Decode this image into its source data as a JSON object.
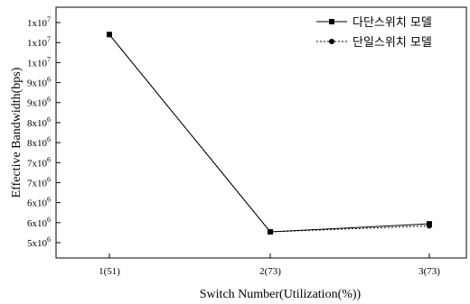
{
  "chart_data": {
    "type": "line",
    "xlabel": "Switch Number(Utilization(%))",
    "ylabel": "Effective Bandwidth(bps)",
    "categories": [
      "1(51)",
      "2(73)",
      "3(73)"
    ],
    "ylim": [
      5000000,
      10500000
    ],
    "yticks": [
      {
        "value": 5000000,
        "label": "5x10",
        "exp": "6"
      },
      {
        "value": 5500000,
        "label": "6x10",
        "exp": "6"
      },
      {
        "value": 6000000,
        "label": "6x10",
        "exp": "6"
      },
      {
        "value": 6500000,
        "label": "7x10",
        "exp": "6"
      },
      {
        "value": 7000000,
        "label": "7x10",
        "exp": "6"
      },
      {
        "value": 7500000,
        "label": "8x10",
        "exp": "6"
      },
      {
        "value": 8000000,
        "label": "8x10",
        "exp": "6"
      },
      {
        "value": 8500000,
        "label": "9x10",
        "exp": "6"
      },
      {
        "value": 9000000,
        "label": "9x10",
        "exp": "6"
      },
      {
        "value": 9500000,
        "label": "1x10",
        "exp": "7"
      },
      {
        "value": 10000000,
        "label": "1x10",
        "exp": "7"
      },
      {
        "value": 10500000,
        "label": "1x10",
        "exp": "7"
      }
    ],
    "series": [
      {
        "name": "다단스위치 모델",
        "values": [
          10200000,
          5270000,
          5470000
        ],
        "dash": "solid",
        "marker": "square",
        "color": "#000000"
      },
      {
        "name": "단일스위치 모델",
        "values": [
          10200000,
          5270000,
          5420000
        ],
        "dash": "dotted",
        "marker": "circle",
        "color": "#000000"
      }
    ],
    "legend_position": "top-right",
    "grid": false
  }
}
